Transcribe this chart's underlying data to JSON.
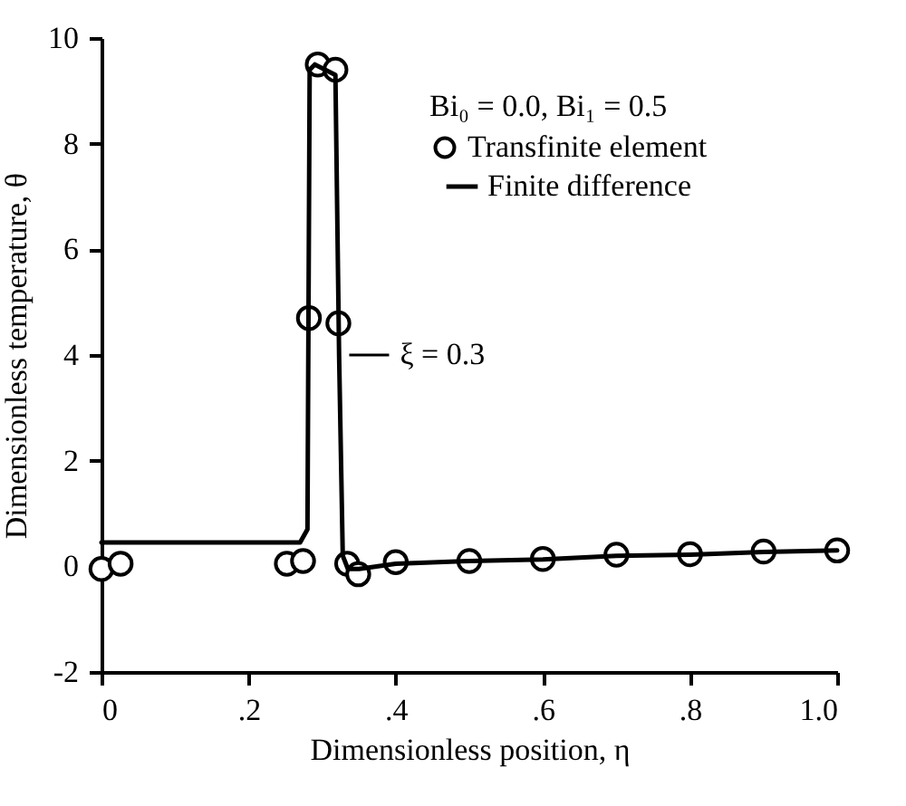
{
  "chart_data": {
    "type": "line",
    "xlabel": "Dimensionless position, η",
    "ylabel": "Dimensionless temperature, θ",
    "legend_title": "Bi₀ = 0.0,  Bi₁ = 0.5",
    "xlim": [
      0,
      1.0
    ],
    "ylim": [
      -2,
      10
    ],
    "xticks": [
      {
        "value": 0,
        "label": "0"
      },
      {
        "value": 0.2,
        "label": ".2"
      },
      {
        "value": 0.4,
        "label": ".4"
      },
      {
        "value": 0.6,
        "label": ".6"
      },
      {
        "value": 0.8,
        "label": ".8"
      },
      {
        "value": 1.0,
        "label": "1.0"
      }
    ],
    "yticks": [
      {
        "value": -2,
        "label": "-2"
      },
      0,
      2,
      4,
      6,
      8,
      10
    ],
    "grid": false,
    "legend": "top right",
    "annotations": [
      {
        "text": "ξ = 0.3",
        "x": 0.322,
        "y": 4
      }
    ],
    "series": [
      {
        "name": "Transfinite element",
        "type": "scatter",
        "marker": "circle",
        "color": "#000000",
        "x": [
          0.0,
          0.026,
          0.252,
          0.274,
          0.282,
          0.294,
          0.318,
          0.322,
          0.334,
          0.349,
          0.4,
          0.5,
          0.6,
          0.7,
          0.8,
          0.9,
          1.0
        ],
        "values": [
          -0.05,
          0.05,
          0.05,
          0.1,
          4.7,
          9.5,
          9.4,
          4.6,
          0.05,
          -0.15,
          0.08,
          0.1,
          0.14,
          0.22,
          0.23,
          0.28,
          0.3
        ]
      },
      {
        "name": "Finite difference",
        "type": "line",
        "line_style": "solid",
        "color": "#000000",
        "x": [
          0.0,
          0.27,
          0.28,
          0.283,
          0.29,
          0.318,
          0.323,
          0.328,
          0.335,
          0.35,
          0.4,
          0.5,
          0.6,
          0.7,
          0.8,
          0.9,
          1.0
        ],
        "values": [
          0.45,
          0.45,
          0.7,
          9.4,
          9.5,
          9.3,
          4.0,
          0.2,
          -0.05,
          -0.05,
          0.05,
          0.1,
          0.13,
          0.2,
          0.22,
          0.27,
          0.3
        ]
      }
    ]
  }
}
